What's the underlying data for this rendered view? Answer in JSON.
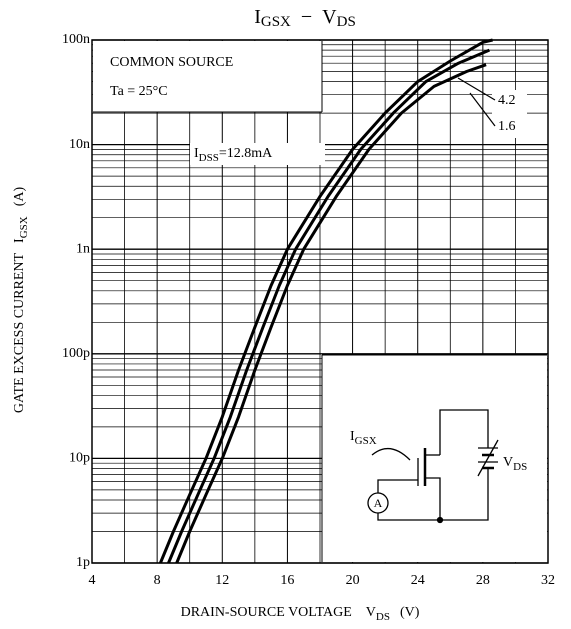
{
  "chart_data": {
    "type": "line",
    "title": {
      "main1": "I",
      "sub1": "GSX",
      "dash": "−",
      "main2": "V",
      "sub2": "DS"
    },
    "x_label": {
      "text": "DRAIN-SOURCE VOLTAGE",
      "main": "V",
      "sub": "DS",
      "unit": "(V)"
    },
    "y_label": {
      "text": "GATE EXCESS CURRENT",
      "main": "I",
      "sub": "GSX",
      "unit": "(A)"
    },
    "xlim": [
      4,
      32
    ],
    "xticks": [
      4,
      8,
      12,
      16,
      20,
      24,
      28,
      32
    ],
    "ylim": [
      1e-12,
      1e-07
    ],
    "log_y": true,
    "grid": true,
    "yticks": [
      {
        "value": 1e-12,
        "label": "1p"
      },
      {
        "value": 1e-11,
        "label": "10p"
      },
      {
        "value": 1e-10,
        "label": "100p"
      },
      {
        "value": 1e-09,
        "label": "1n"
      },
      {
        "value": 1e-08,
        "label": "10n"
      },
      {
        "value": 1e-07,
        "label": "100n"
      }
    ],
    "box_text": [
      "COMMON SOURCE",
      "Ta = 25°C"
    ],
    "idss_label": {
      "main": "I",
      "sub": "DSS",
      "eq": "="
    },
    "circuit": {
      "current_main": "I",
      "current_sub": "GSX",
      "voltage_main": "V",
      "voltage_sub": "DS",
      "meter": "A"
    },
    "series": [
      {
        "name": "12.8mA",
        "color": "#000",
        "x": [
          8.2,
          9,
          10,
          11,
          12,
          13,
          14,
          15,
          16,
          18,
          20,
          22,
          24,
          26,
          28,
          28.6
        ],
        "values": [
          1e-12,
          2e-12,
          4.5e-12,
          1e-11,
          2.5e-11,
          7e-11,
          1.8e-10,
          4.5e-10,
          1e-09,
          3.2e-09,
          9e-09,
          2e-08,
          4e-08,
          6.3e-08,
          9.5e-08,
          1e-07
        ]
      },
      {
        "name": "4.2",
        "color": "#000",
        "x": [
          8.7,
          9.5,
          10.5,
          11.5,
          12.5,
          13.5,
          14.5,
          15.5,
          16.5,
          18.5,
          20.5,
          22.5,
          24.5,
          26.5,
          28.4
        ],
        "values": [
          1e-12,
          2e-12,
          4.5e-12,
          1e-11,
          2.5e-11,
          7e-11,
          1.8e-10,
          4.5e-10,
          1e-09,
          3.2e-09,
          9e-09,
          2e-08,
          4e-08,
          6e-08,
          8e-08
        ]
      },
      {
        "name": "1.6",
        "color": "#000",
        "x": [
          9.2,
          10,
          11,
          12,
          13,
          14,
          15,
          16,
          17,
          19,
          21,
          23,
          25,
          27,
          28.2
        ],
        "values": [
          1e-12,
          2e-12,
          4.5e-12,
          1e-11,
          2.5e-11,
          7e-11,
          1.8e-10,
          4.5e-10,
          1e-09,
          3.2e-09,
          9e-09,
          2e-08,
          3.6e-08,
          5e-08,
          5.8e-08
        ]
      }
    ]
  }
}
